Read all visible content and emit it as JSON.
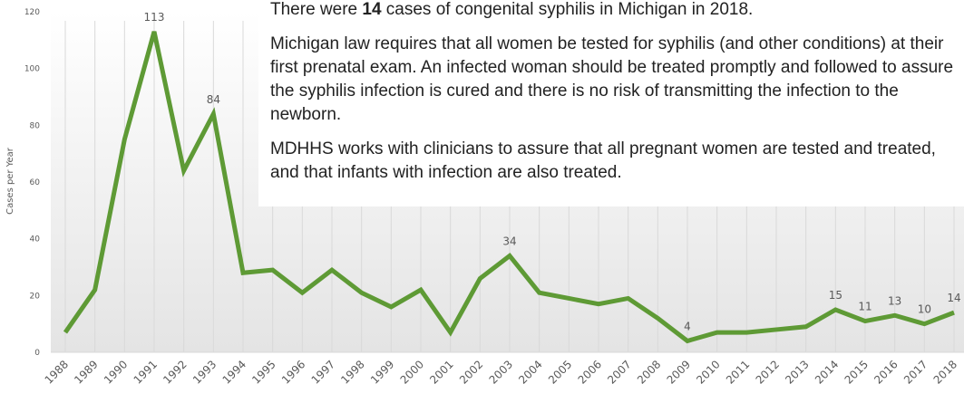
{
  "chart_data": {
    "type": "line",
    "y_label": "Cases per Year",
    "categories": [
      "1988",
      "1989",
      "1990",
      "1991",
      "1992",
      "1993",
      "1994",
      "1995",
      "1996",
      "1997",
      "1998",
      "1999",
      "2000",
      "2001",
      "2002",
      "2003",
      "2004",
      "2005",
      "2006",
      "2007",
      "2008",
      "2009",
      "2010",
      "2011",
      "2012",
      "2013",
      "2014",
      "2015",
      "2016",
      "2017",
      "2018"
    ],
    "series": [
      {
        "name": "Cases",
        "color": "#5e9a35",
        "values": [
          7,
          22,
          75,
          113,
          64,
          84,
          28,
          29,
          21,
          29,
          21,
          16,
          22,
          7,
          26,
          34,
          21,
          19,
          17,
          19,
          12,
          4,
          7,
          7,
          8,
          9,
          15,
          11,
          13,
          10,
          14
        ],
        "value_labels": [
          null,
          null,
          null,
          113,
          null,
          84,
          null,
          null,
          null,
          null,
          null,
          null,
          null,
          null,
          null,
          34,
          null,
          null,
          null,
          null,
          null,
          4,
          null,
          null,
          null,
          null,
          15,
          11,
          13,
          10,
          14
        ]
      }
    ],
    "ylim": [
      0,
      120
    ],
    "yticks": [
      0,
      20,
      40,
      60,
      80,
      100,
      120
    ],
    "grid": true
  },
  "text_box": {
    "paragraphs": [
      [
        "There were ",
        "14",
        " cases of congenital syphilis in Michigan in 2018."
      ],
      [
        "Michigan law requires that all women be tested for syphilis (and other conditions) at their first prenatal exam. An infected woman should be treated promptly and followed to assure the syphilis infection is cured and there is no risk of transmitting the infection to the newborn."
      ],
      [
        "MDHHS works with clinicians to assure that all pregnant women are tested and treated, and that infants with infection are also treated."
      ]
    ]
  }
}
